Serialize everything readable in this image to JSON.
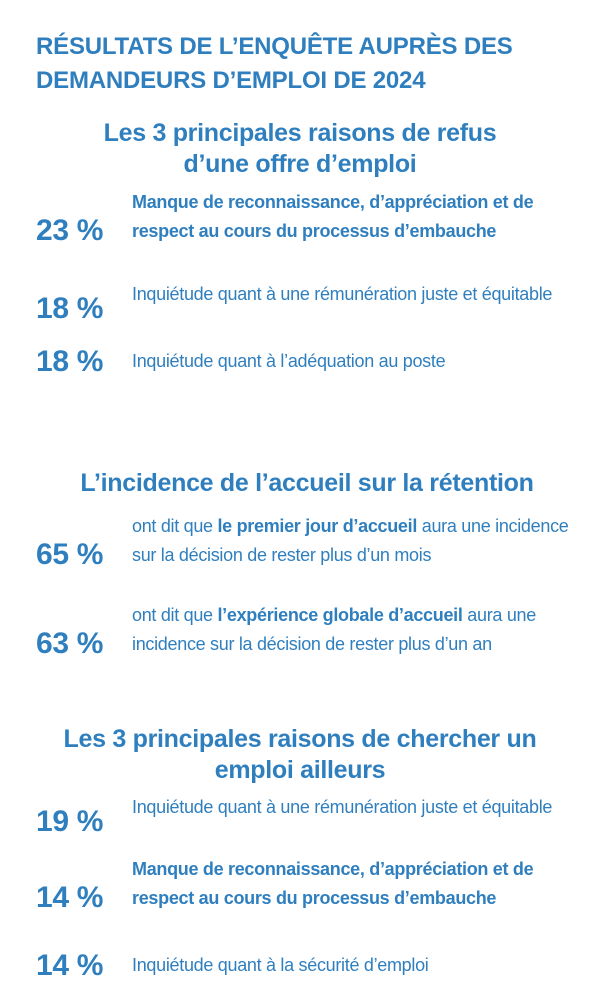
{
  "header": {
    "title": "RÉSULTATS DE L’ENQUÊTE AUPRÈS DES DEMANDEURS D’EMPLOI DE 2024"
  },
  "sections": [
    {
      "title": "Les 3 principales raisons de refus d’une offre d’emploi",
      "items": [
        {
          "percent": "23 %",
          "text": "Manque de reconnaissance, d’appréciation et de respect au cours du processus d’embauche"
        },
        {
          "percent": "18 %",
          "text": "Inquiétude quant à une rémunération juste et équitable"
        },
        {
          "percent": "18 %",
          "text": "Inquiétude quant à l’adéquation au poste"
        }
      ]
    },
    {
      "title": "L’incidence de l’accueil sur la rétention",
      "items": [
        {
          "percent": "65 %",
          "before": "ont dit que ",
          "highlight": "le premier jour d’accueil",
          "after": " aura une incidence sur la décision de rester plus d’un mois"
        },
        {
          "percent": "63 %",
          "before": "ont dit que ",
          "highlight": "l’expérience globale d’accueil",
          "after": " aura une incidence sur la décision de rester plus d’un an"
        }
      ]
    },
    {
      "title": "Les 3 principales raisons de chercher un emploi ailleurs",
      "items": [
        {
          "percent": "19 %",
          "text": "Inquiétude quant à une rémunération juste et équitable"
        },
        {
          "percent": "14 %",
          "text": "Manque de reconnaissance, d’appréciation et de respect au cours du processus d’embauche"
        },
        {
          "percent": "14 %",
          "text": "Inquiétude quant à la sécurité d’emploi"
        }
      ]
    }
  ],
  "colors": {
    "text": "#2f7fbf",
    "background": "#ffffff"
  }
}
